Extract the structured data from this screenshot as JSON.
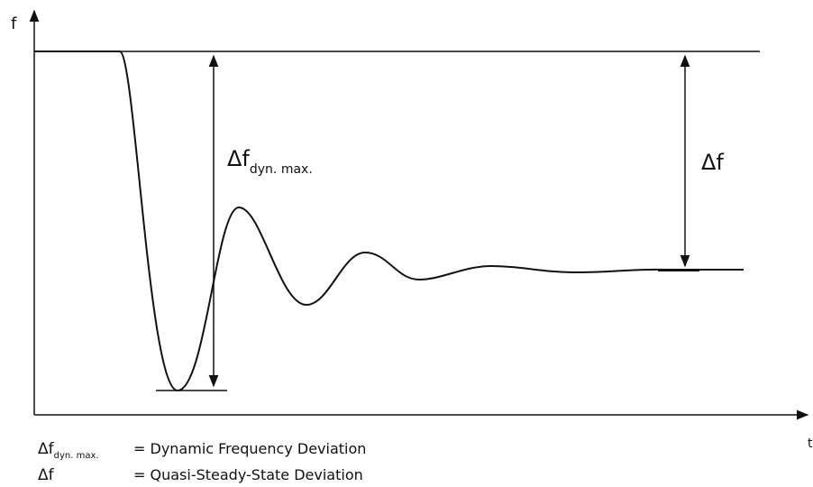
{
  "axes": {
    "y_label": "f",
    "x_label": "t"
  },
  "annotations": [
    {
      "symbol": "Δf",
      "subscript": "dyn. max."
    },
    {
      "symbol": "Δf"
    }
  ],
  "legend": [
    {
      "symbol": "Δf",
      "subscript": "dyn. max.",
      "definition": "= Dynamic Frequency Deviation"
    },
    {
      "symbol": "Δf",
      "definition": "= Quasi-Steady-State Deviation"
    }
  ]
}
